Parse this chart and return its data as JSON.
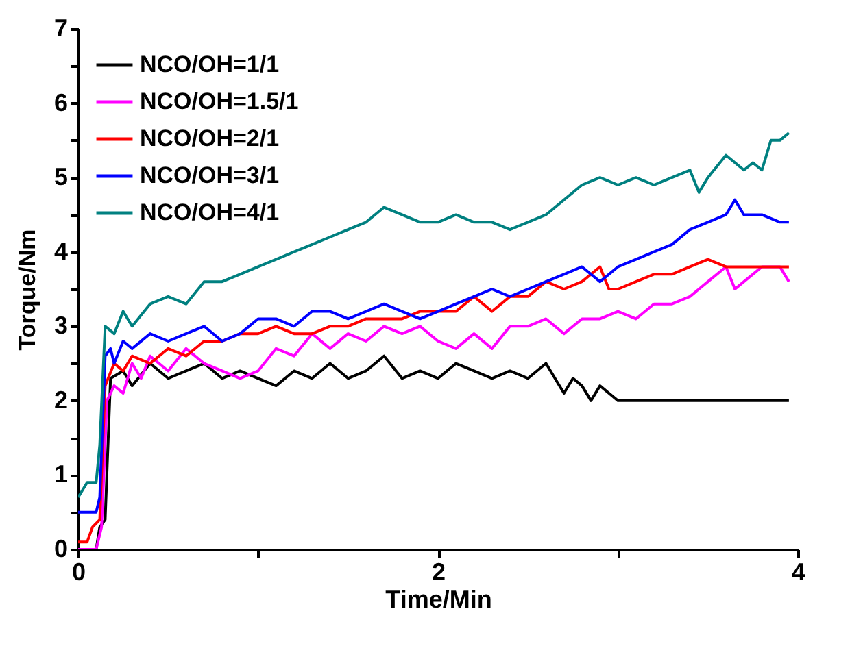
{
  "chart_data": {
    "type": "line",
    "xlabel": "Time/Min",
    "ylabel": "Torque/Nm",
    "xlim": [
      0,
      4
    ],
    "ylim": [
      0,
      7
    ],
    "xticks": [
      0,
      {
        "value": 1,
        "label": null
      },
      2,
      {
        "value": 3,
        "label": null
      },
      4
    ],
    "yticks": [
      0,
      {
        "value": 0.5,
        "label": null
      },
      1,
      {
        "value": 1.5,
        "label": null
      },
      2,
      {
        "value": 2.5,
        "label": null
      },
      3,
      {
        "value": 3.5,
        "label": null
      },
      4,
      {
        "value": 4.5,
        "label": null
      },
      5,
      {
        "value": 5.5,
        "label": null
      },
      6,
      {
        "value": 6.5,
        "label": null
      },
      7
    ],
    "grid": false,
    "legend": "top left",
    "line_style": "solid",
    "series": [
      {
        "name": "NCO/OH=1/1",
        "color": "#000000",
        "x": [
          0,
          0.1,
          0.12,
          0.15,
          0.18,
          0.25,
          0.3,
          0.4,
          0.5,
          0.6,
          0.7,
          0.8,
          0.9,
          1.0,
          1.1,
          1.2,
          1.3,
          1.4,
          1.5,
          1.6,
          1.7,
          1.8,
          1.9,
          2.0,
          2.1,
          2.2,
          2.3,
          2.4,
          2.5,
          2.6,
          2.65,
          2.7,
          2.75,
          2.8,
          2.85,
          2.9,
          2.95,
          3.0,
          3.95
        ],
        "values": [
          0,
          0,
          0.3,
          0.4,
          2.3,
          2.4,
          2.2,
          2.5,
          2.3,
          2.4,
          2.5,
          2.3,
          2.4,
          2.3,
          2.2,
          2.4,
          2.3,
          2.5,
          2.3,
          2.4,
          2.6,
          2.3,
          2.4,
          2.3,
          2.5,
          2.4,
          2.3,
          2.4,
          2.3,
          2.5,
          2.3,
          2.1,
          2.3,
          2.2,
          2.0,
          2.2,
          2.1,
          2.0,
          2.0
        ]
      },
      {
        "name": "NCO/OH=1.5/1",
        "color": "#ff00ff",
        "x": [
          0,
          0.1,
          0.13,
          0.16,
          0.2,
          0.25,
          0.3,
          0.35,
          0.4,
          0.5,
          0.6,
          0.7,
          0.8,
          0.9,
          1.0,
          1.1,
          1.2,
          1.3,
          1.4,
          1.5,
          1.6,
          1.7,
          1.8,
          1.9,
          2.0,
          2.1,
          2.2,
          2.3,
          2.4,
          2.5,
          2.6,
          2.7,
          2.8,
          2.9,
          3.0,
          3.1,
          3.2,
          3.3,
          3.4,
          3.5,
          3.6,
          3.65,
          3.7,
          3.8,
          3.9,
          3.95
        ],
        "values": [
          0,
          0,
          0.3,
          2.0,
          2.2,
          2.1,
          2.5,
          2.3,
          2.6,
          2.4,
          2.7,
          2.5,
          2.4,
          2.3,
          2.4,
          2.7,
          2.6,
          2.9,
          2.7,
          2.9,
          2.8,
          3.0,
          2.9,
          3.0,
          2.8,
          2.7,
          2.9,
          2.7,
          3.0,
          3.0,
          3.1,
          2.9,
          3.1,
          3.1,
          3.2,
          3.1,
          3.3,
          3.3,
          3.4,
          3.6,
          3.8,
          3.5,
          3.6,
          3.8,
          3.8,
          3.6
        ]
      },
      {
        "name": "NCO/OH=2/1",
        "color": "#ff0000",
        "x": [
          0,
          0.05,
          0.08,
          0.12,
          0.15,
          0.2,
          0.25,
          0.3,
          0.4,
          0.5,
          0.6,
          0.7,
          0.8,
          0.9,
          1.0,
          1.1,
          1.2,
          1.3,
          1.4,
          1.5,
          1.6,
          1.7,
          1.8,
          1.9,
          2.0,
          2.1,
          2.2,
          2.3,
          2.4,
          2.5,
          2.6,
          2.7,
          2.8,
          2.9,
          2.95,
          3.0,
          3.1,
          3.2,
          3.3,
          3.4,
          3.5,
          3.6,
          3.8,
          3.95
        ],
        "values": [
          0.1,
          0.1,
          0.3,
          0.4,
          2.2,
          2.5,
          2.4,
          2.6,
          2.5,
          2.7,
          2.6,
          2.8,
          2.8,
          2.9,
          2.9,
          3.0,
          2.9,
          2.9,
          3.0,
          3.0,
          3.1,
          3.1,
          3.1,
          3.2,
          3.2,
          3.2,
          3.4,
          3.2,
          3.4,
          3.4,
          3.6,
          3.5,
          3.6,
          3.8,
          3.5,
          3.5,
          3.6,
          3.7,
          3.7,
          3.8,
          3.9,
          3.8,
          3.8,
          3.8
        ]
      },
      {
        "name": "NCO/OH=3/1",
        "color": "#0000ff",
        "x": [
          0,
          0.1,
          0.12,
          0.15,
          0.18,
          0.2,
          0.25,
          0.3,
          0.4,
          0.5,
          0.6,
          0.7,
          0.8,
          0.9,
          1.0,
          1.1,
          1.2,
          1.3,
          1.4,
          1.5,
          1.6,
          1.7,
          1.8,
          1.9,
          2.0,
          2.1,
          2.2,
          2.3,
          2.4,
          2.5,
          2.6,
          2.7,
          2.8,
          2.9,
          3.0,
          3.1,
          3.2,
          3.3,
          3.4,
          3.5,
          3.6,
          3.65,
          3.7,
          3.8,
          3.9,
          3.95
        ],
        "values": [
          0.5,
          0.5,
          0.7,
          2.6,
          2.7,
          2.5,
          2.8,
          2.7,
          2.9,
          2.8,
          2.9,
          3.0,
          2.8,
          2.9,
          3.1,
          3.1,
          3.0,
          3.2,
          3.2,
          3.1,
          3.2,
          3.3,
          3.2,
          3.1,
          3.2,
          3.3,
          3.4,
          3.5,
          3.4,
          3.5,
          3.6,
          3.7,
          3.8,
          3.6,
          3.8,
          3.9,
          4.0,
          4.1,
          4.3,
          4.4,
          4.5,
          4.7,
          4.5,
          4.5,
          4.4,
          4.4
        ]
      },
      {
        "name": "NCO/OH=4/1",
        "color": "#008080",
        "x": [
          0,
          0.05,
          0.1,
          0.12,
          0.15,
          0.2,
          0.25,
          0.3,
          0.4,
          0.5,
          0.6,
          0.7,
          0.8,
          0.9,
          1.0,
          1.1,
          1.2,
          1.3,
          1.4,
          1.5,
          1.6,
          1.7,
          1.8,
          1.9,
          2.0,
          2.1,
          2.2,
          2.3,
          2.4,
          2.5,
          2.6,
          2.7,
          2.8,
          2.9,
          3.0,
          3.1,
          3.2,
          3.3,
          3.4,
          3.45,
          3.5,
          3.6,
          3.7,
          3.75,
          3.8,
          3.85,
          3.9,
          3.95
        ],
        "values": [
          0.7,
          0.9,
          0.9,
          1.4,
          3.0,
          2.9,
          3.2,
          3.0,
          3.3,
          3.4,
          3.3,
          3.6,
          3.6,
          3.7,
          3.8,
          3.9,
          4.0,
          4.1,
          4.2,
          4.3,
          4.4,
          4.6,
          4.5,
          4.4,
          4.4,
          4.5,
          4.4,
          4.4,
          4.3,
          4.4,
          4.5,
          4.7,
          4.9,
          5.0,
          4.9,
          5.0,
          4.9,
          5.0,
          5.1,
          4.8,
          5.0,
          5.3,
          5.1,
          5.2,
          5.1,
          5.5,
          5.5,
          5.6
        ]
      }
    ]
  }
}
